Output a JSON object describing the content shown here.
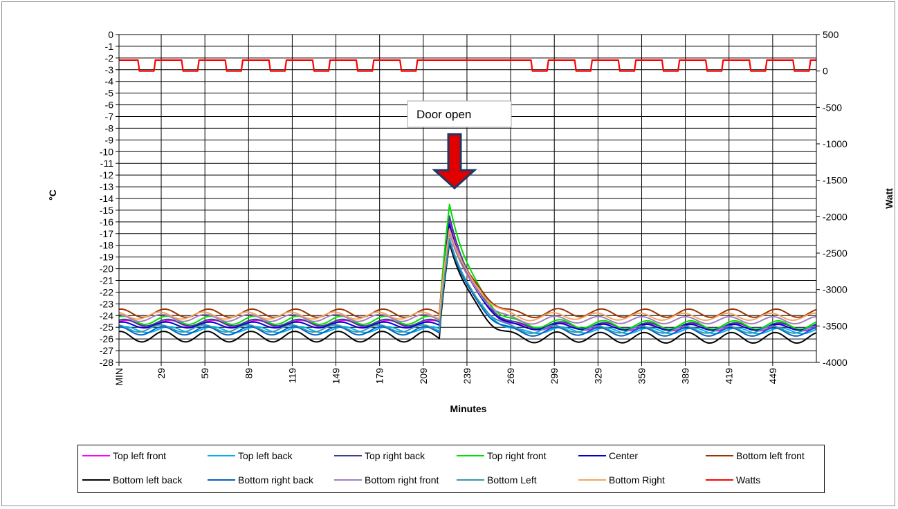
{
  "chart_data": {
    "type": "line",
    "xlabel": "Minutes",
    "ylabel_left": "°C",
    "ylabel_right": "Watt",
    "x_range": [
      0,
      479
    ],
    "y_left": {
      "min": -28,
      "max": 0,
      "step": 1,
      "ticks": [
        "0",
        "-1",
        "-2",
        "-3",
        "-4",
        "-5",
        "-6",
        "-7",
        "-8",
        "-9",
        "-10",
        "-11",
        "-12",
        "-13",
        "-14",
        "-15",
        "-16",
        "-17",
        "-18",
        "-19",
        "-20",
        "-21",
        "-22",
        "-23",
        "-24",
        "-25",
        "-26",
        "-27",
        "-28"
      ]
    },
    "y_right": {
      "min": -4000,
      "max": 500,
      "step": 500,
      "ticks": [
        "500",
        "0",
        "-500",
        "-1000",
        "-1500",
        "-2000",
        "-2500",
        "-3000",
        "-3500",
        "-4000"
      ]
    },
    "x_ticks": [
      "MIN",
      "29",
      "59",
      "89",
      "119",
      "149",
      "179",
      "209",
      "239",
      "269",
      "299",
      "329",
      "359",
      "389",
      "419",
      "449"
    ],
    "grid": true,
    "legend_position": "bottom",
    "annotation": {
      "text": "Door open",
      "x": 226
    },
    "door_event": {
      "start": 220,
      "peak": 227
    },
    "period_minutes": 30,
    "series": [
      {
        "name": "Top left front",
        "color": "#ff00ff",
        "axis": "left",
        "base": -24.7,
        "amp": 0.3,
        "peak": -16.0,
        "after_base": -25.0
      },
      {
        "name": "Top left back",
        "color": "#00b0f0",
        "axis": "left",
        "base": -25.2,
        "amp": 0.25,
        "peak": -17.5,
        "after_base": -25.3
      },
      {
        "name": "Top right back",
        "color": "#3f3f8f",
        "axis": "left",
        "base": -24.6,
        "amp": 0.28,
        "peak": -15.5,
        "after_base": -24.9
      },
      {
        "name": "Top right front",
        "color": "#00e000",
        "axis": "left",
        "base": -24.4,
        "amp": 0.35,
        "peak": -14.5,
        "after_base": -24.8
      },
      {
        "name": "Center",
        "color": "#0000cc",
        "axis": "left",
        "base": -24.8,
        "amp": 0.25,
        "peak": -16.2,
        "after_base": -25.0
      },
      {
        "name": "Bottom left front",
        "color": "#993300",
        "axis": "left",
        "base": -23.8,
        "amp": 0.35,
        "peak": -16.8,
        "after_base": -23.8
      },
      {
        "name": "Bottom left back",
        "color": "#000000",
        "axis": "left",
        "base": -25.8,
        "amp": 0.45,
        "peak": -17.8,
        "after_base": -25.9
      },
      {
        "name": "Bottom right back",
        "color": "#0060c0",
        "axis": "left",
        "base": -25.3,
        "amp": 0.35,
        "peak": -17.6,
        "after_base": -25.4
      },
      {
        "name": "Bottom right front",
        "color": "#9f7fbf",
        "axis": "left",
        "base": -24.2,
        "amp": 0.3,
        "peak": -16.9,
        "after_base": -24.4
      },
      {
        "name": "Bottom Left",
        "color": "#3399aa",
        "axis": "left",
        "base": -25.1,
        "amp": 0.3,
        "peak": -17.4,
        "after_base": -25.2
      },
      {
        "name": "Bottom Right",
        "color": "#f4a460",
        "axis": "left",
        "base": -24.0,
        "amp": 0.3,
        "peak": -16.6,
        "after_base": -24.1
      },
      {
        "name": "Watts",
        "color": "#ff0000",
        "axis": "right",
        "high": 150,
        "low": 0
      }
    ]
  },
  "legend": [
    {
      "label": "Top left front",
      "color": "#ff00ff"
    },
    {
      "label": "Top left back",
      "color": "#00b0f0"
    },
    {
      "label": "Top right back",
      "color": "#3f3f8f"
    },
    {
      "label": "Top right front",
      "color": "#00e000"
    },
    {
      "label": "Center",
      "color": "#0000cc"
    },
    {
      "label": "Bottom left front",
      "color": "#993300"
    },
    {
      "label": "Bottom left back",
      "color": "#000000"
    },
    {
      "label": "Bottom right back",
      "color": "#0060c0"
    },
    {
      "label": "Bottom right front",
      "color": "#9f7fbf"
    },
    {
      "label": "Bottom Left",
      "color": "#3399aa"
    },
    {
      "label": "Bottom Right",
      "color": "#f4a460"
    },
    {
      "label": "Watts",
      "color": "#ff0000"
    }
  ]
}
